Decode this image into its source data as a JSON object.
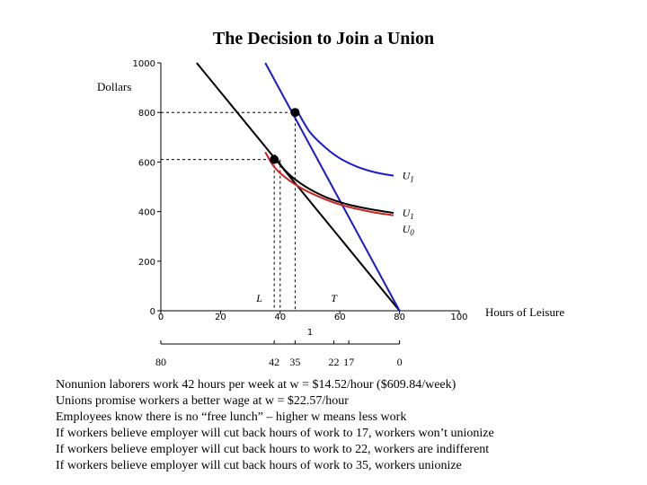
{
  "title": "The Decision to Join a Union",
  "chart_data": {
    "type": "line",
    "title": "The Decision to Join a Union",
    "ylabel": "Dollars",
    "xlabel": "Hours of Leisure",
    "xlim": [
      0,
      100
    ],
    "ylim": [
      0,
      1000
    ],
    "x_ticks": [
      {
        "value": 0,
        "label": "0"
      },
      {
        "value": 20,
        "label": "20"
      },
      {
        "value": 40,
        "label": "40"
      },
      {
        "value": 60,
        "label": "60"
      },
      {
        "value": 80,
        "label": "80"
      },
      {
        "value": 100,
        "label": "100"
      }
    ],
    "y_ticks": [
      {
        "value": 0,
        "label": "0"
      },
      {
        "value": 200,
        "label": "200"
      },
      {
        "value": 400,
        "label": "400"
      },
      {
        "value": 600,
        "label": "600"
      },
      {
        "value": 800,
        "label": "800"
      },
      {
        "value": 1000,
        "label": "1000"
      }
    ],
    "work_axis_label": "1",
    "work_ticks": [
      {
        "value": 0,
        "label": "80"
      },
      {
        "value": 38,
        "label": "42"
      },
      {
        "value": 45,
        "label": "35"
      },
      {
        "value": 58,
        "label": "22"
      },
      {
        "value": 63,
        "label": "17"
      },
      {
        "value": 80,
        "label": "0"
      }
    ],
    "series": [
      {
        "name": "",
        "color": "#000000",
        "role": "nonunion budget line",
        "points": [
          [
            12,
            1000
          ],
          [
            80,
            0
          ]
        ]
      },
      {
        "name": "",
        "color": "#1a1acc",
        "role": "union budget line",
        "points": [
          [
            35,
            1000
          ],
          [
            80,
            0
          ]
        ]
      },
      {
        "name": "U1",
        "color": "#1a1acc",
        "role": "indifference curve",
        "points": [
          [
            46,
            800
          ],
          [
            50,
            720
          ],
          [
            55,
            660
          ],
          [
            60,
            615
          ],
          [
            66,
            580
          ],
          [
            72,
            558
          ],
          [
            78,
            545
          ]
        ]
      },
      {
        "name": "U1",
        "color": "#000000",
        "role": "indifference curve",
        "points": [
          [
            38,
            630
          ],
          [
            41,
            575
          ],
          [
            45,
            530
          ],
          [
            50,
            490
          ],
          [
            56,
            455
          ],
          [
            63,
            428
          ],
          [
            71,
            408
          ],
          [
            78,
            395
          ]
        ]
      },
      {
        "name": "U0",
        "color": "#cc2222",
        "role": "indifference curve",
        "points": [
          [
            35,
            640
          ],
          [
            38,
            580
          ],
          [
            42,
            535
          ],
          [
            47,
            495
          ],
          [
            54,
            455
          ],
          [
            61,
            425
          ],
          [
            70,
            400
          ],
          [
            78,
            385
          ]
        ]
      }
    ],
    "points": [
      {
        "x": 38,
        "y": 610,
        "color": "#000000"
      },
      {
        "x": 45,
        "y": 800,
        "color": "#000000"
      }
    ],
    "guides": [
      {
        "from": [
          0,
          800
        ],
        "to": [
          45,
          800
        ]
      },
      {
        "from": [
          45,
          800
        ],
        "to": [
          45,
          0
        ]
      },
      {
        "from": [
          0,
          610
        ],
        "to": [
          38,
          610
        ]
      },
      {
        "from": [
          38,
          610
        ],
        "to": [
          38,
          0
        ]
      },
      {
        "from": [
          40,
          610
        ],
        "to": [
          40,
          0
        ]
      }
    ],
    "annotations": [
      {
        "text": "L",
        "x": 33,
        "y": 0
      },
      {
        "text": "T",
        "x": 58,
        "y": 0
      }
    ],
    "curve_labels": [
      "U1",
      "U1",
      "U0"
    ]
  },
  "notes": [
    "Nonunion laborers work 42 hours per week at w = $14.52/hour ($609.84/week)",
    "Unions promise workers a better wage at w = $22.57/hour",
    "Employees know there is no “free lunch” – higher w means less work",
    "If workers believe employer will cut back hours of work to 17, workers won’t unionize",
    "If workers believe employer will cut back hours to work to 22, workers are indifferent",
    "If workers believe employer will cut back hours of work to 35, workers unionize"
  ]
}
